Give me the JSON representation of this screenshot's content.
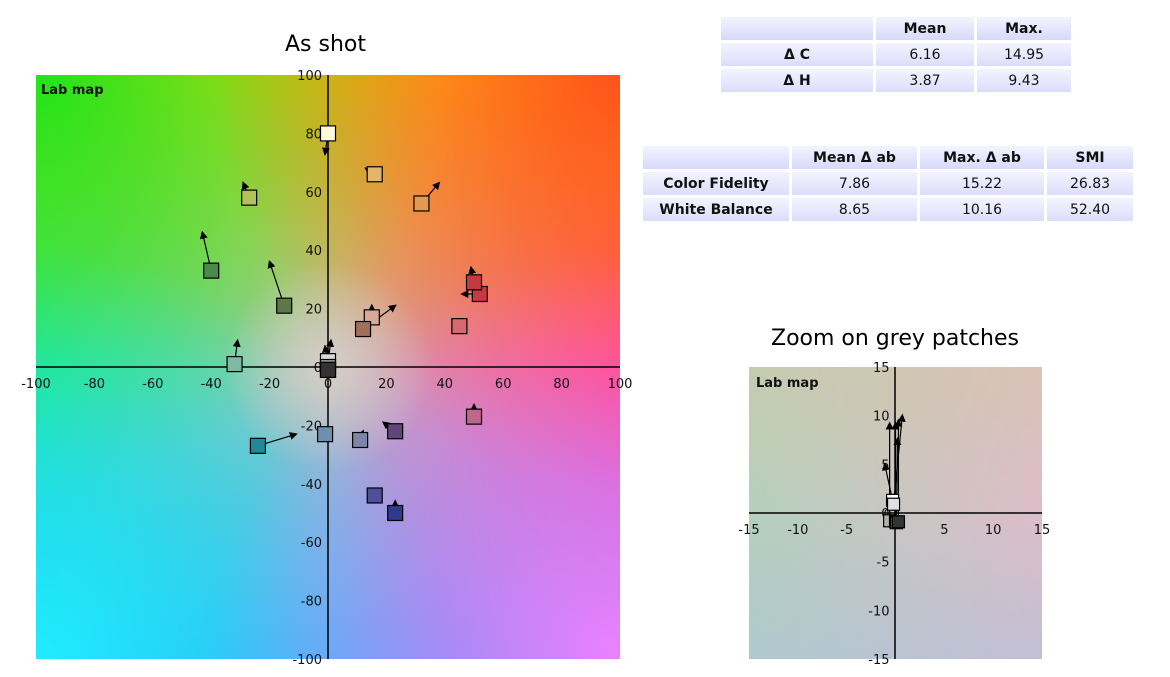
{
  "chart_data": [
    {
      "type": "scatter",
      "title": "As shot",
      "map_label": "Lab map",
      "xlim": [
        -100,
        100
      ],
      "ylim": [
        -100,
        100
      ],
      "x_ticks": [
        -100,
        -80,
        -60,
        -40,
        -20,
        0,
        20,
        40,
        60,
        80,
        100
      ],
      "y_ticks": [
        -100,
        -80,
        -60,
        -40,
        -20,
        0,
        20,
        40,
        60,
        80,
        100
      ],
      "patches": [
        {
          "x": 0,
          "y": 80,
          "tx": -1,
          "ty": 73,
          "color": "#fff9dc"
        },
        {
          "x": 16,
          "y": 66,
          "tx": 13,
          "ty": 68,
          "color": "#e3b56a"
        },
        {
          "x": -27,
          "y": 58,
          "tx": -29,
          "ty": 63,
          "color": "#b4c05a"
        },
        {
          "x": 32,
          "y": 56,
          "tx": 38,
          "ty": 63,
          "color": "#e29a53"
        },
        {
          "x": -40,
          "y": 33,
          "tx": -43,
          "ty": 46,
          "color": "#4a8a4c"
        },
        {
          "x": -15,
          "y": 21,
          "tx": -20,
          "ty": 36,
          "color": "#5d7846"
        },
        {
          "x": 52,
          "y": 25,
          "tx": 46,
          "ty": 25,
          "color": "#c53a40"
        },
        {
          "x": 50,
          "y": 29,
          "tx": 49,
          "ty": 34,
          "color": "#c53a40"
        },
        {
          "x": 45,
          "y": 14,
          "tx": 45,
          "ty": 14,
          "color": "#d66a6f"
        },
        {
          "x": 15,
          "y": 17,
          "tx": 15,
          "ty": 21,
          "color": "#d6aa96"
        },
        {
          "x": 12,
          "y": 13,
          "tx": 23,
          "ty": 21,
          "color": "#a0705a"
        },
        {
          "x": -32,
          "y": 1,
          "tx": -31,
          "ty": 9,
          "color": "#7bbba4"
        },
        {
          "x": 0,
          "y": 2,
          "tx": 1,
          "ty": 9,
          "color": "#d9d9d9"
        },
        {
          "x": 0,
          "y": 0,
          "tx": -1,
          "ty": 7,
          "color": "#9c9c9c"
        },
        {
          "x": 0,
          "y": -1,
          "tx": 0,
          "ty": 5,
          "color": "#5a5a5a"
        },
        {
          "x": 0,
          "y": -1,
          "tx": 0,
          "ty": 3,
          "color": "#333333"
        },
        {
          "x": -24,
          "y": -27,
          "tx": -11,
          "ty": -23,
          "color": "#1e8a98"
        },
        {
          "x": -1,
          "y": -23,
          "tx": -1,
          "ty": -23,
          "color": "#6d8fb0"
        },
        {
          "x": 11,
          "y": -25,
          "tx": 12,
          "ty": -22,
          "color": "#7d85a8"
        },
        {
          "x": 23,
          "y": -22,
          "tx": 19,
          "ty": -19,
          "color": "#5e4778"
        },
        {
          "x": 50,
          "y": -17,
          "tx": 50,
          "ty": -13,
          "color": "#c0668c"
        },
        {
          "x": 16,
          "y": -44,
          "tx": 16,
          "ty": -44,
          "color": "#4e4e9a"
        },
        {
          "x": 23,
          "y": -50,
          "tx": 23,
          "ty": -46,
          "color": "#2f3a8c"
        }
      ]
    },
    {
      "type": "scatter",
      "title": "Zoom on grey patches",
      "map_label": "Lab map",
      "xlim": [
        -15,
        15
      ],
      "ylim": [
        -15,
        15
      ],
      "x_ticks": [
        -15,
        -10,
        -5,
        5,
        10,
        15
      ],
      "y_ticks": [
        -15,
        -10,
        -5,
        0,
        5,
        10,
        15
      ],
      "zero_x_label": "0",
      "patches": [
        {
          "x": -0.3,
          "y": 1.3,
          "tx": -1.1,
          "ty": 5.0,
          "color": "#ffffff"
        },
        {
          "x": -0.2,
          "y": 0.9,
          "tx": 0.7,
          "ty": 10.0,
          "color": "#e0e0e0"
        },
        {
          "x": -0.6,
          "y": -0.8,
          "tx": -0.6,
          "ty": 9.2,
          "color": "#b0b0b0"
        },
        {
          "x": 0.0,
          "y": -0.9,
          "tx": 0.0,
          "ty": 9.2,
          "color": "#808080"
        },
        {
          "x": 0.1,
          "y": -1.0,
          "tx": 0.2,
          "ty": 7.6,
          "color": "#555555"
        },
        {
          "x": 0.3,
          "y": -0.9,
          "tx": 0.3,
          "ty": 9.5,
          "color": "#333333"
        }
      ]
    }
  ],
  "table1": {
    "headers": [
      "",
      "Mean",
      "Max."
    ],
    "rows": [
      {
        "label": "Δ C",
        "mean": "6.16",
        "max": "14.95"
      },
      {
        "label": "Δ H",
        "mean": "3.87",
        "max": "9.43"
      }
    ]
  },
  "table2": {
    "headers": [
      "",
      "Mean Δ ab",
      "Max. Δ ab",
      "SMI"
    ],
    "rows": [
      {
        "label": "Color Fidelity",
        "mean": "7.86",
        "max": "15.22",
        "smi": "26.83"
      },
      {
        "label": "White Balance",
        "mean": "8.65",
        "max": "10.16",
        "smi": "52.40"
      }
    ]
  }
}
